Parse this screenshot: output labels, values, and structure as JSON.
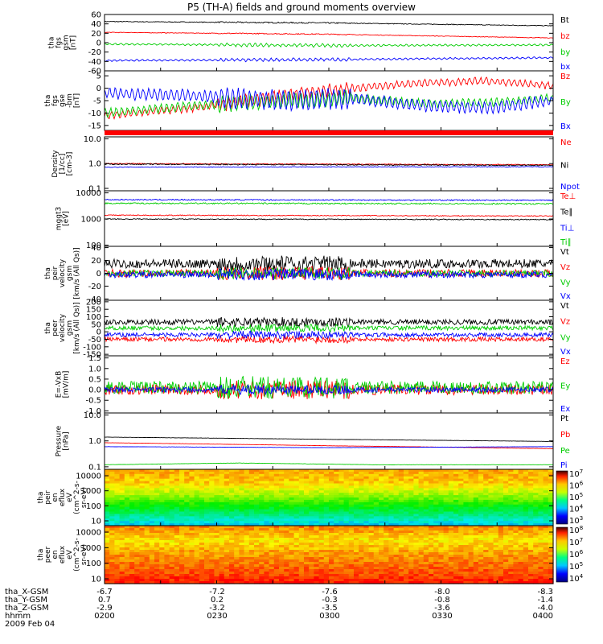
{
  "figure": {
    "title": "P5 (TH-A) fields and ground moments overview",
    "date": "2009 Feb 04"
  },
  "ephemeris": {
    "rows": [
      {
        "label": "tha_X-GSM",
        "values": [
          "-6.7",
          "-7.2",
          "-7.6",
          "-8.0",
          "-8.3"
        ]
      },
      {
        "label": "tha_Y-GSM",
        "values": [
          "0.7",
          "0.2",
          "-0.3",
          "-0.8",
          "-1.4"
        ]
      },
      {
        "label": "tha_Z-GSM",
        "values": [
          "-2.9",
          "-3.2",
          "-3.5",
          "-3.6",
          "-4.0"
        ]
      },
      {
        "label": "hhmm",
        "values": [
          "0200",
          "0230",
          "0300",
          "0330",
          "0400"
        ]
      }
    ]
  },
  "chart_data": [
    {
      "type": "line",
      "panel": "fgs_gsm",
      "ylabel": [
        "tha",
        "fgs",
        "gsm",
        "[nT]"
      ],
      "yticks": [
        "60",
        "40",
        "20",
        "0",
        "-20",
        "-40",
        "-60"
      ],
      "ylim": [
        -60,
        60
      ],
      "scale": "linear",
      "series": [
        {
          "name": "Bt",
          "color": "#000000",
          "keys": [
            [
              0,
              45
            ],
            [
              0.5,
              42
            ],
            [
              1,
              36
            ]
          ],
          "noise": 0.8,
          "osc": 0
        },
        {
          "name": "bz",
          "color": "#ff0000",
          "keys": [
            [
              0,
              22
            ],
            [
              0.5,
              18
            ],
            [
              1,
              10
            ]
          ],
          "noise": 0.6,
          "osc": 0
        },
        {
          "name": "by",
          "color": "#00cc00",
          "keys": [
            [
              0,
              -3
            ],
            [
              0.5,
              -6
            ],
            [
              1,
              -5
            ]
          ],
          "noise": 0.8,
          "osc": 1.5
        },
        {
          "name": "bx",
          "color": "#0000ff",
          "keys": [
            [
              0,
              -38
            ],
            [
              0.5,
              -36
            ],
            [
              1,
              -32
            ]
          ],
          "noise": 0.8,
          "osc": 1.5
        }
      ]
    },
    {
      "type": "line",
      "panel": "fgs_gse_detrended",
      "ylabel": [
        "tha",
        "fgs",
        "gse",
        "-bm",
        "[nT]"
      ],
      "yticks": [
        "5",
        "0",
        "-5",
        "-10",
        "-15"
      ],
      "ylim": [
        -17,
        7
      ],
      "scale": "linear",
      "series": [
        {
          "name": "Bz",
          "color": "#ff0000",
          "keys": [
            [
              0,
              -11
            ],
            [
              0.2,
              -8
            ],
            [
              0.4,
              -3
            ],
            [
              0.55,
              0
            ],
            [
              0.7,
              2
            ],
            [
              0.85,
              3
            ],
            [
              1,
              1
            ]
          ],
          "noise": 0.5,
          "osc": 1.2
        },
        {
          "name": "By",
          "color": "#00cc00",
          "keys": [
            [
              0,
              -10
            ],
            [
              0.2,
              -7
            ],
            [
              0.4,
              -5
            ],
            [
              0.55,
              -4
            ],
            [
              0.7,
              -6
            ],
            [
              0.85,
              -6
            ],
            [
              1,
              -4
            ]
          ],
          "noise": 0.5,
          "osc": 1.5
        },
        {
          "name": "Bx",
          "color": "#0000ff",
          "keys": [
            [
              0,
              -2
            ],
            [
              0.2,
              -3
            ],
            [
              0.4,
              -5
            ],
            [
              0.55,
              -4
            ],
            [
              0.7,
              -7
            ],
            [
              0.85,
              -8
            ],
            [
              1,
              -5
            ]
          ],
          "noise": 0.6,
          "osc": 2.0
        }
      ]
    },
    {
      "type": "line",
      "panel": "density",
      "ylabel": [
        "Density",
        "[1/cc]",
        "[cm-3]"
      ],
      "yticks": [
        "10.0",
        "1.0",
        "0.1"
      ],
      "ylim": [
        0.08,
        12
      ],
      "scale": "log",
      "series": [
        {
          "name": "Ne",
          "color": "#ff0000",
          "keys": [
            [
              0,
              1.0
            ],
            [
              1,
              0.9
            ]
          ],
          "noise": 0.04,
          "osc": 0
        },
        {
          "name": "Ni",
          "color": "#000000",
          "keys": [
            [
              0,
              0.95
            ],
            [
              1,
              0.85
            ]
          ],
          "noise": 0.05,
          "osc": 0
        },
        {
          "name": "Npot",
          "color": "#0000ff",
          "keys": [
            [
              0,
              0.72
            ],
            [
              1,
              0.75
            ]
          ],
          "noise": 0.03,
          "osc": 0
        }
      ]
    },
    {
      "type": "line",
      "panel": "temperature",
      "ylabel": [
        "mggt3",
        "[eV]"
      ],
      "yticks": [
        "10000",
        "1000",
        "100"
      ],
      "ylim": [
        90,
        12000
      ],
      "scale": "log",
      "series": [
        {
          "name": "Te⊥",
          "color": "#ff0000",
          "keys": [
            [
              0,
              1400
            ],
            [
              1,
              1300
            ]
          ],
          "noise": 0.04,
          "osc": 0
        },
        {
          "name": "Te∥",
          "color": "#000000",
          "keys": [
            [
              0,
              1000
            ],
            [
              1,
              950
            ]
          ],
          "noise": 0.04,
          "osc": 0
        },
        {
          "name": "Ti⊥",
          "color": "#0000ff",
          "keys": [
            [
              0,
              5500
            ],
            [
              1,
              5200
            ]
          ],
          "noise": 0.05,
          "osc": 0
        },
        {
          "name": "Ti∥",
          "color": "#00cc00",
          "keys": [
            [
              0,
              4000
            ],
            [
              1,
              3800
            ]
          ],
          "noise": 0.06,
          "osc": 0
        }
      ]
    },
    {
      "type": "line",
      "panel": "peir_velocity",
      "ylabel": [
        "tha",
        "peir",
        "velocity",
        "gsm",
        "[km/s (All Qs)]"
      ],
      "yticks": [
        "40",
        "20",
        "0",
        "-20",
        "-40"
      ],
      "ylim": [
        -42,
        42
      ],
      "scale": "linear",
      "series": [
        {
          "name": "Vt",
          "color": "#000000",
          "keys": [
            [
              0,
              15
            ],
            [
              1,
              15
            ]
          ],
          "noise": 7,
          "osc": 0
        },
        {
          "name": "Vz",
          "color": "#ff0000",
          "keys": [
            [
              0,
              0
            ],
            [
              1,
              0
            ]
          ],
          "noise": 6,
          "osc": 0
        },
        {
          "name": "Vy",
          "color": "#00cc00",
          "keys": [
            [
              0,
              0
            ],
            [
              1,
              0
            ]
          ],
          "noise": 5,
          "osc": 0
        },
        {
          "name": "Vx",
          "color": "#0000ff",
          "keys": [
            [
              0,
              -2
            ],
            [
              1,
              -2
            ]
          ],
          "noise": 5,
          "osc": 0
        }
      ]
    },
    {
      "type": "line",
      "panel": "peer_velocity",
      "ylabel": [
        "tha",
        "peer",
        "velocity",
        "gsm",
        "[km/s (All Qs)]"
      ],
      "yticks": [
        "200",
        "150",
        "100",
        "50",
        "0",
        "-50",
        "-100",
        "-150"
      ],
      "ylim": [
        -160,
        210
      ],
      "scale": "linear",
      "series": [
        {
          "name": "Vt",
          "color": "#000000",
          "keys": [
            [
              0,
              65
            ],
            [
              1,
              65
            ]
          ],
          "noise": 18,
          "osc": 0
        },
        {
          "name": "Vz",
          "color": "#ff0000",
          "keys": [
            [
              0,
              -50
            ],
            [
              1,
              -50
            ]
          ],
          "noise": 14,
          "osc": 0
        },
        {
          "name": "Vy",
          "color": "#00cc00",
          "keys": [
            [
              0,
              25
            ],
            [
              1,
              25
            ]
          ],
          "noise": 14,
          "osc": 0
        },
        {
          "name": "Vx",
          "color": "#0000ff",
          "keys": [
            [
              0,
              -20
            ],
            [
              1,
              -20
            ]
          ],
          "noise": 14,
          "osc": 0
        }
      ]
    },
    {
      "type": "line",
      "panel": "efield",
      "ylabel": [
        "E=-VxB",
        "[mV/m]"
      ],
      "yticks": [
        "1.5",
        "1.0",
        "0.5",
        "0.0",
        "-0.5",
        "-1.0"
      ],
      "ylim": [
        -1.1,
        1.6
      ],
      "scale": "linear",
      "series": [
        {
          "name": "Ez",
          "color": "#ff0000",
          "keys": [
            [
              0,
              0
            ],
            [
              1,
              0
            ]
          ],
          "noise": 0.25,
          "osc": 0
        },
        {
          "name": "Ey",
          "color": "#00cc00",
          "keys": [
            [
              0,
              0.1
            ],
            [
              1,
              0.1
            ]
          ],
          "noise": 0.3,
          "osc": 0
        },
        {
          "name": "Ex",
          "color": "#0000ff",
          "keys": [
            [
              0,
              0
            ],
            [
              1,
              0
            ]
          ],
          "noise": 0.12,
          "osc": 0
        }
      ]
    },
    {
      "type": "line",
      "panel": "pressure",
      "ylabel": [
        "Pressure",
        "[nPa]"
      ],
      "yticks": [
        "10.0",
        "1.0",
        "0.1"
      ],
      "ylim": [
        0.08,
        12
      ],
      "scale": "log",
      "series": [
        {
          "name": "Pt",
          "color": "#000000",
          "keys": [
            [
              0,
              1.4
            ],
            [
              0.5,
              1.15
            ],
            [
              1,
              0.95
            ]
          ],
          "noise": 0.01,
          "osc": 0
        },
        {
          "name": "Pb",
          "color": "#ff0000",
          "keys": [
            [
              0,
              0.85
            ],
            [
              0.5,
              0.65
            ],
            [
              1,
              0.5
            ]
          ],
          "noise": 0.01,
          "osc": 0
        },
        {
          "name": "Pe",
          "color": "#00cc00",
          "keys": [
            [
              0,
              0.12
            ],
            [
              0.3,
              0.14
            ],
            [
              0.6,
              0.12
            ],
            [
              1,
              0.12
            ]
          ],
          "noise": 0.01,
          "osc": 0
        },
        {
          "name": "Pi",
          "color": "#0000ff",
          "keys": [
            [
              0,
              0.6
            ],
            [
              0.5,
              0.55
            ],
            [
              1,
              0.6
            ]
          ],
          "noise": 0.01,
          "osc": 0
        }
      ]
    },
    {
      "type": "heatmap",
      "panel": "peir_spectrogram",
      "ylabel": [
        "tha",
        "peir",
        "en",
        "eflux",
        "eV",
        "(cm^2-s-",
        "sr-eV)"
      ],
      "yticks": [
        "10000",
        "1000",
        "100",
        "10"
      ],
      "ylim": [
        8,
        25000
      ],
      "scale": "log",
      "colorbar_ticks": [
        "7",
        "6",
        "5",
        "4",
        "3"
      ],
      "colorbar_base": "10",
      "profile": [
        [
          0,
          0.05
        ],
        [
          0.2,
          0.25
        ],
        [
          0.35,
          0.4
        ],
        [
          0.55,
          0.6
        ],
        [
          0.75,
          0.75
        ],
        [
          1,
          0.8
        ]
      ]
    },
    {
      "type": "heatmap",
      "panel": "peer_spectrogram",
      "ylabel": [
        "tha",
        "peer",
        "en",
        "eflux",
        "eV",
        "(cm^2-s-",
        "sr-eV)"
      ],
      "yticks": [
        "10000",
        "1000",
        "100",
        "10"
      ],
      "ylim": [
        8,
        25000
      ],
      "scale": "log",
      "colorbar_ticks": [
        "8",
        "7",
        "6",
        "5",
        "4"
      ],
      "colorbar_base": "10",
      "profile": [
        [
          0,
          0.98
        ],
        [
          0.15,
          0.92
        ],
        [
          0.4,
          0.85
        ],
        [
          0.55,
          0.8
        ],
        [
          0.75,
          0.72
        ],
        [
          0.9,
          0.8
        ],
        [
          1,
          0.85
        ]
      ]
    }
  ]
}
